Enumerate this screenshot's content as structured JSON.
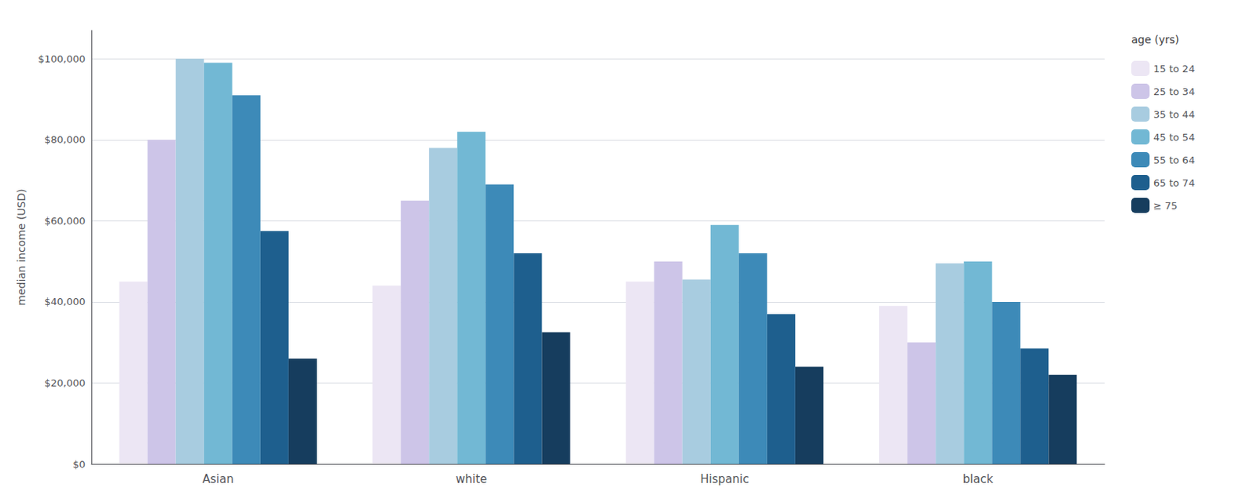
{
  "chart_data": {
    "type": "bar",
    "categories": [
      "Asian",
      "white",
      "Hispanic",
      "black"
    ],
    "series": [
      {
        "name": "15 to 24",
        "color": "#ece6f4",
        "values": [
          45000,
          44000,
          45000,
          39000
        ]
      },
      {
        "name": "25 to 34",
        "color": "#cdc5e8",
        "values": [
          80000,
          65000,
          50000,
          30000
        ]
      },
      {
        "name": "35 to 44",
        "color": "#a8cce0",
        "values": [
          100000,
          78000,
          45500,
          49500
        ]
      },
      {
        "name": "45 to 54",
        "color": "#72b8d4",
        "values": [
          99000,
          82000,
          59000,
          50000
        ]
      },
      {
        "name": "55 to 64",
        "color": "#3d8ab8",
        "values": [
          91000,
          69000,
          52000,
          40000
        ]
      },
      {
        "name": "65 to 74",
        "color": "#1e5f8e",
        "values": [
          57500,
          52000,
          37000,
          28500
        ]
      },
      {
        "name": "≥ 75",
        "color": "#163d5e",
        "values": [
          26000,
          32500,
          24000,
          22000
        ]
      }
    ],
    "ylabel": "median income (USD)",
    "legend_title": "age (yrs)",
    "ylim": [
      0,
      107000
    ],
    "yticks": [
      {
        "value": 0,
        "label": "$0"
      },
      {
        "value": 20000,
        "label": "$20,000"
      },
      {
        "value": 40000,
        "label": "$40,000"
      },
      {
        "value": 60000,
        "label": "$60,000"
      },
      {
        "value": 80000,
        "label": "$80,000"
      },
      {
        "value": 100000,
        "label": "$100,000"
      }
    ],
    "grid": true,
    "legend": "right"
  }
}
